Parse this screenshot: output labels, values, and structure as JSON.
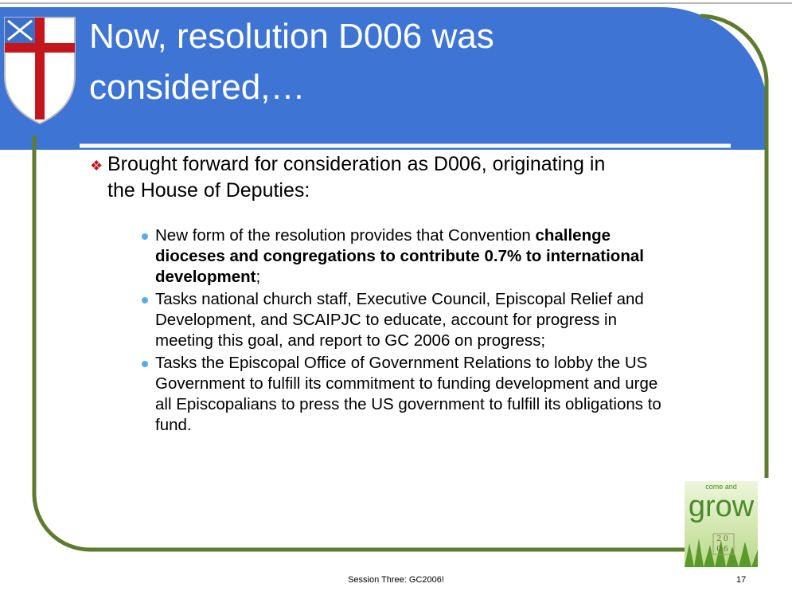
{
  "slide": {
    "title": "Now, resolution D006 was considered,…",
    "main_bullet": "Brought forward for consideration as D006, originating in the House of Deputies:",
    "sub_bullets": [
      {
        "parts": [
          {
            "text": "New form of the resolution provides that Convention ",
            "bold": false
          },
          {
            "text": "challenge dioceses and congregations to contribute 0.7% to international development",
            "bold": true
          },
          {
            "text": ";",
            "bold": false
          }
        ]
      },
      {
        "parts": [
          {
            "text": "Tasks national church staff, Executive Council, Episcopal Relief and Development, and SCAIPJC to educate, account for progress in meeting this goal, and report to GC 2006 on progress;",
            "bold": false
          }
        ]
      },
      {
        "parts": [
          {
            "text": "Tasks the Episcopal Office of Government Relations to lobby the US Government to fulfill its commitment to funding development and urge all Episcopalians to press the US government to fulfill its obligations to fund.",
            "bold": false
          }
        ]
      }
    ],
    "footer": "Session Three: GC2006!",
    "page_number": "17",
    "logo": {
      "tagline": "come and",
      "word": "grow",
      "year_top": "20",
      "year_bottom": "06"
    }
  }
}
